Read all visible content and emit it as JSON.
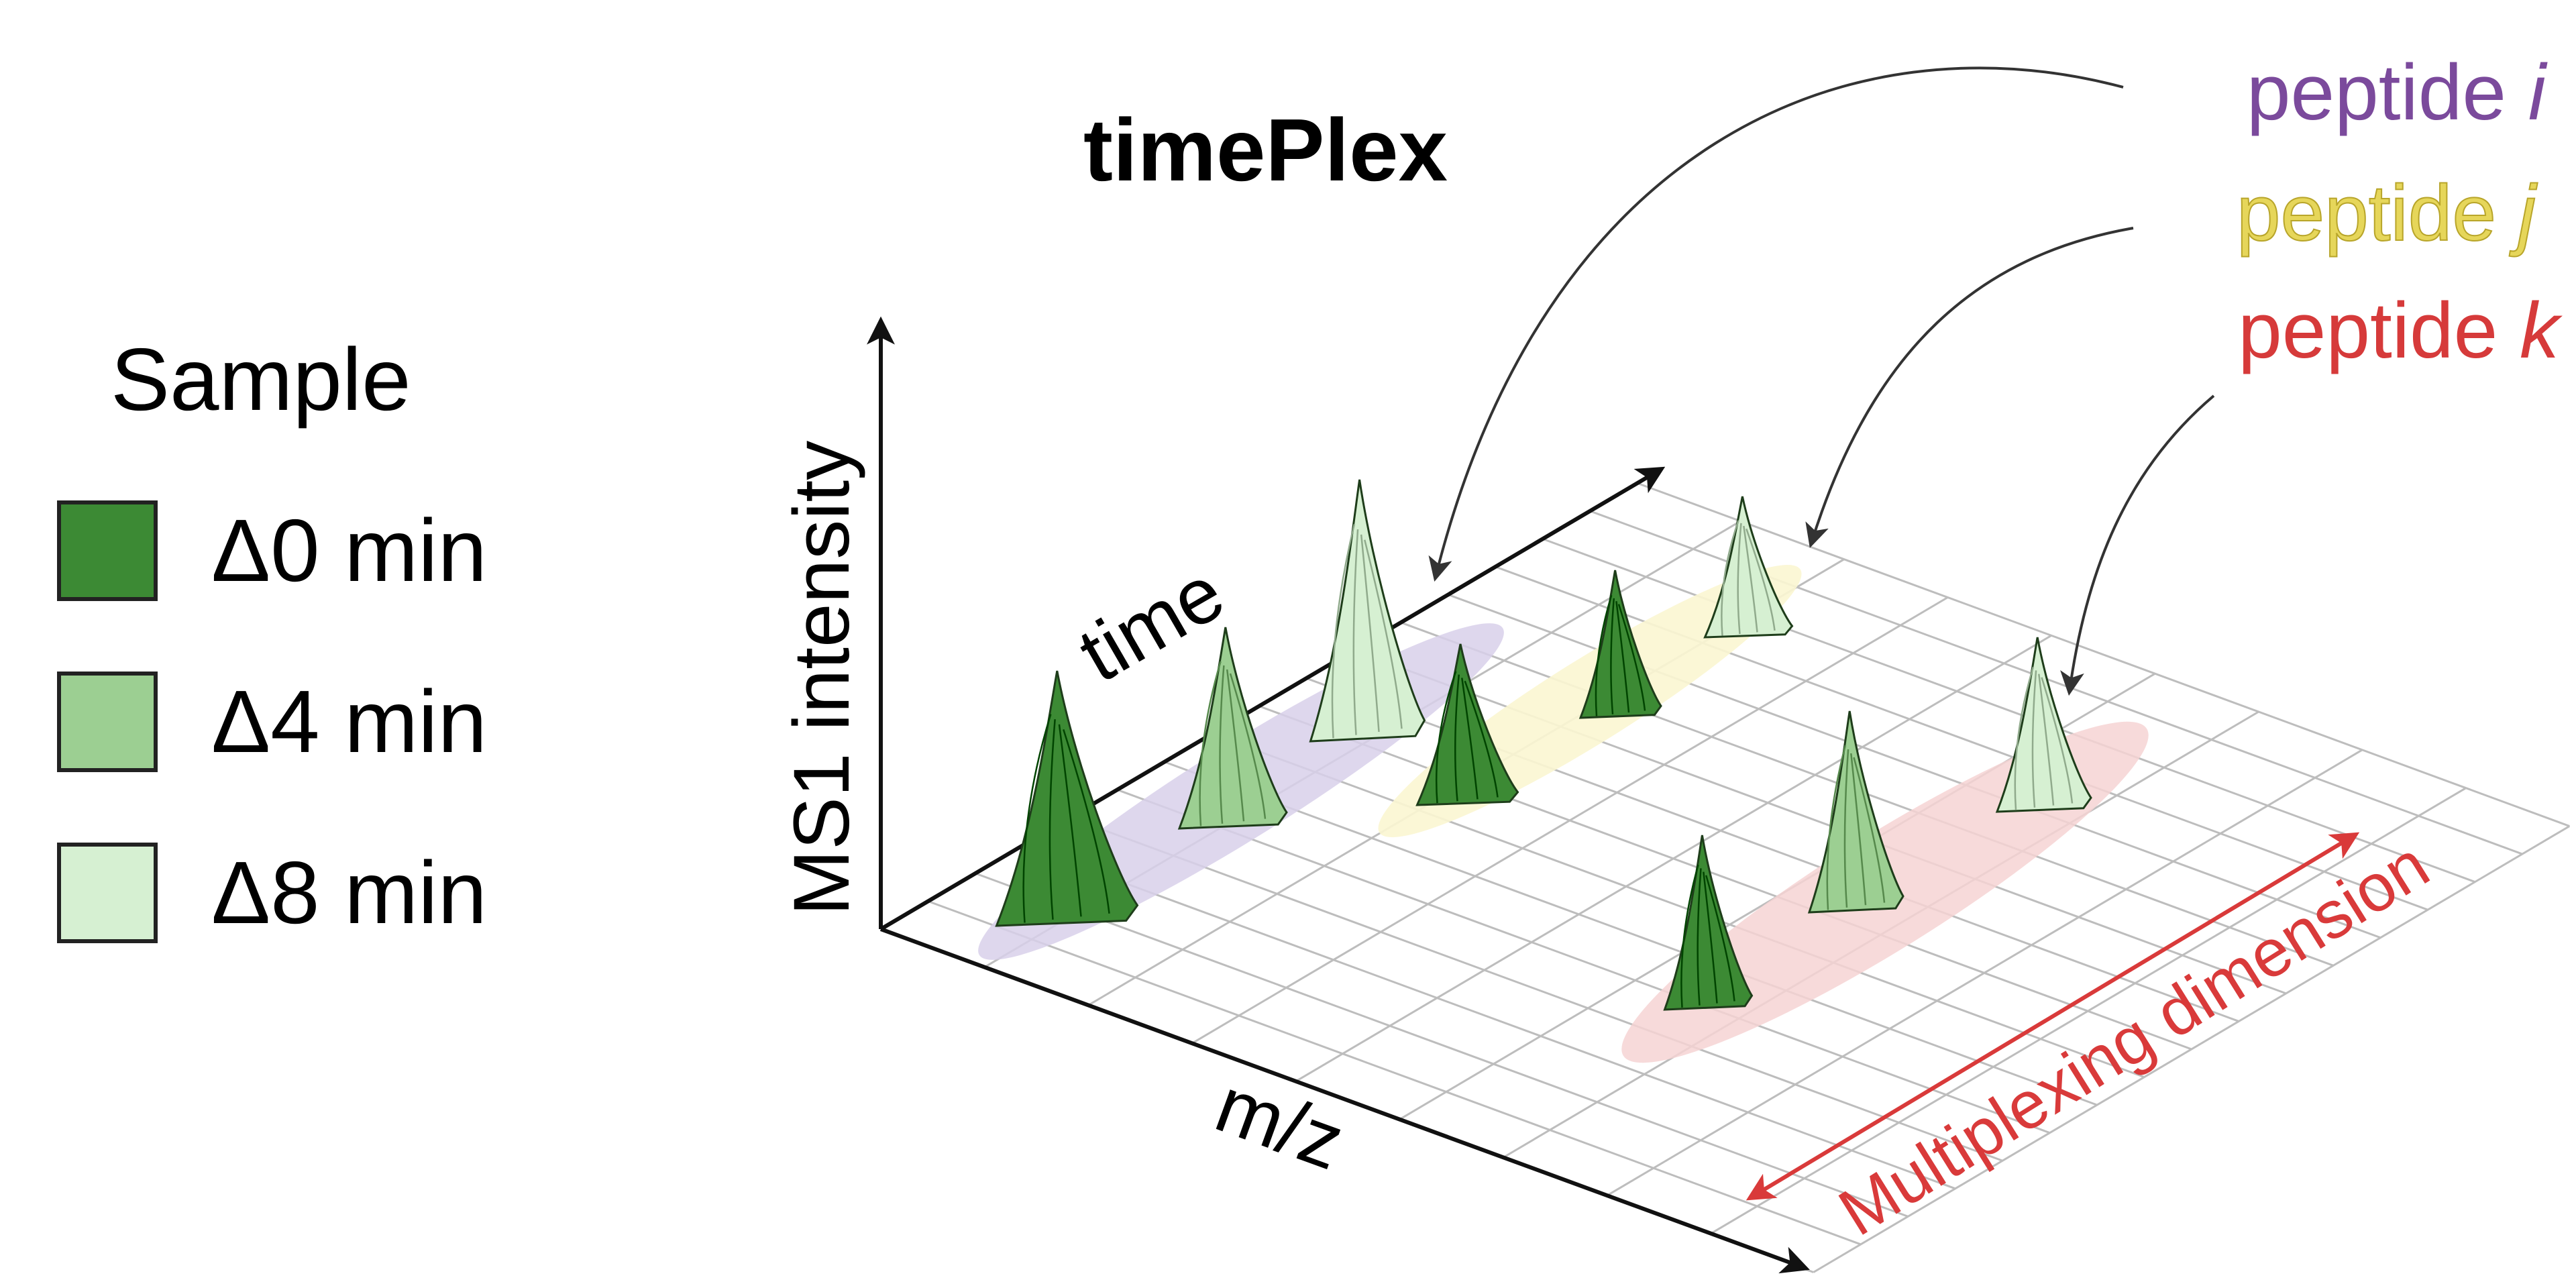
{
  "title": "timePlex",
  "legend": {
    "title": "Sample",
    "items": [
      {
        "label": "Δ0 min",
        "color": "#3c8a34"
      },
      {
        "label": "Δ4 min",
        "color": "#9ccf92"
      },
      {
        "label": "Δ8 min",
        "color": "#d6f0d2"
      }
    ]
  },
  "axes": {
    "y_label": "MS1 intensity",
    "time_label": "time",
    "x_label": "m/z",
    "multiplexing_label": "Multiplexing dimension"
  },
  "peptides": [
    {
      "text": "peptide ",
      "var": "i",
      "color": "#7b4a9c",
      "fill": "#d8d0ea",
      "outline": "#5a3a78"
    },
    {
      "text": "peptide ",
      "var": "j",
      "color": "#e6d65a",
      "fill": "#fbf6d2",
      "outline": "#b8a52a"
    },
    {
      "text": "peptide ",
      "var": "k",
      "color": "#d63a3a",
      "fill": "#f6d4d4",
      "outline": "#a82222"
    }
  ],
  "colors": {
    "multiplex_arrow": "#d93a3a",
    "grid": "#bdbdbd",
    "axis": "#111111"
  }
}
